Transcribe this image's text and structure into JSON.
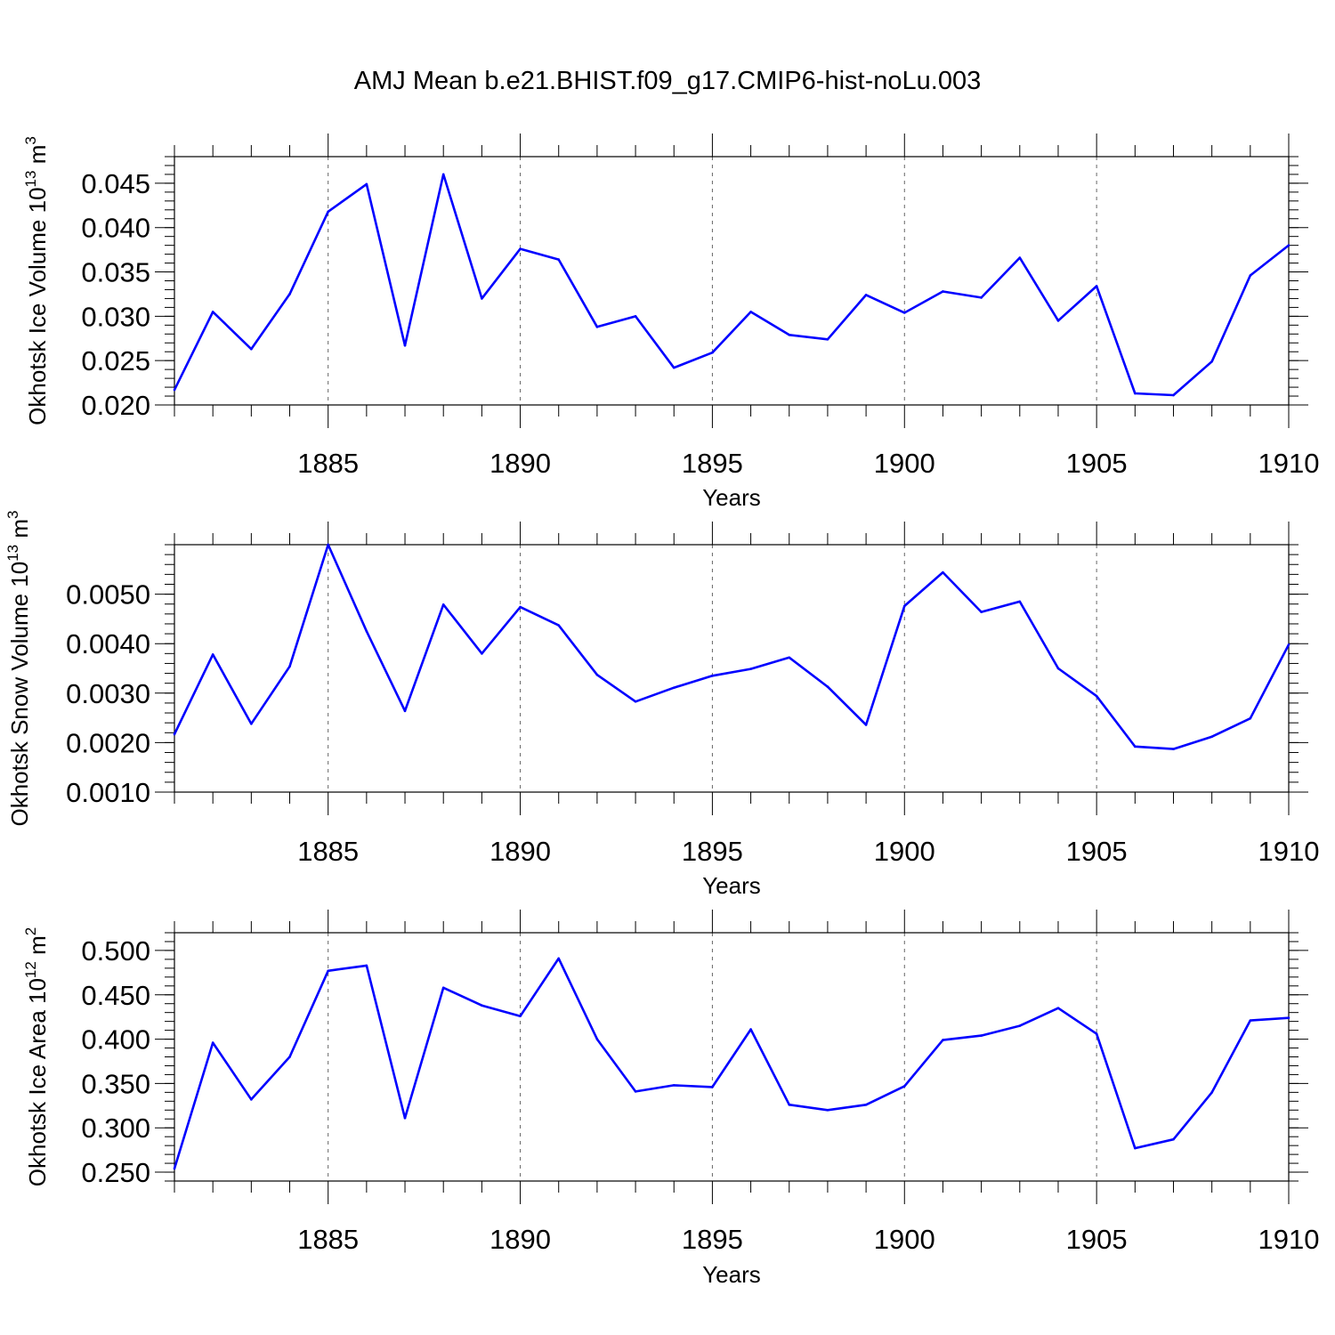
{
  "title": "AMJ Mean b.e21.BHIST.f09_g17.CMIP6-hist-noLu.003",
  "chart_data": [
    {
      "type": "line",
      "name": "ice-volume",
      "ylabel": "Okhotsk Ice Volume",
      "ylabel_power": "10",
      "ylabel_exp": "13",
      "ylabel_unit": "m",
      "ylabel_unit_exp": "3",
      "xlabel": "Years",
      "xlim": [
        1881,
        1910
      ],
      "ylim": [
        0.02,
        0.048
      ],
      "xticks": [
        "1885",
        "1890",
        "1895",
        "1900",
        "1905",
        "1910"
      ],
      "yticks": [
        "0.020",
        "0.025",
        "0.030",
        "0.035",
        "0.040",
        "0.045"
      ],
      "x": [
        1881,
        1882,
        1883,
        1884,
        1885,
        1886,
        1887,
        1888,
        1889,
        1890,
        1891,
        1892,
        1893,
        1894,
        1895,
        1896,
        1897,
        1898,
        1899,
        1900,
        1901,
        1902,
        1903,
        1904,
        1905,
        1906,
        1907,
        1908,
        1909,
        1910
      ],
      "values": [
        0.0217,
        0.0305,
        0.0263,
        0.0325,
        0.0418,
        0.0449,
        0.0267,
        0.046,
        0.032,
        0.0376,
        0.0364,
        0.0288,
        0.03,
        0.0242,
        0.0259,
        0.0305,
        0.0279,
        0.0274,
        0.0324,
        0.0304,
        0.0328,
        0.0321,
        0.0366,
        0.0295,
        0.0334,
        0.0213,
        0.0211,
        0.0249,
        0.0346,
        0.038
      ],
      "color": "#0000ff"
    },
    {
      "type": "line",
      "name": "snow-volume",
      "ylabel": "Okhotsk Snow Volume",
      "ylabel_power": "10",
      "ylabel_exp": "13",
      "ylabel_unit": "m",
      "ylabel_unit_exp": "3",
      "xlabel": "Years",
      "xlim": [
        1881,
        1910
      ],
      "ylim": [
        0.001,
        0.006
      ],
      "xticks": [
        "1885",
        "1890",
        "1895",
        "1900",
        "1905",
        "1910"
      ],
      "yticks": [
        "0.0010",
        "0.0020",
        "0.0030",
        "0.0040",
        "0.0050"
      ],
      "x": [
        1881,
        1882,
        1883,
        1884,
        1885,
        1886,
        1887,
        1888,
        1889,
        1890,
        1891,
        1892,
        1893,
        1894,
        1895,
        1896,
        1897,
        1898,
        1899,
        1900,
        1901,
        1902,
        1903,
        1904,
        1905,
        1906,
        1907,
        1908,
        1909,
        1910
      ],
      "values": [
        0.00217,
        0.00378,
        0.00238,
        0.00354,
        0.006,
        0.00425,
        0.00264,
        0.00479,
        0.0038,
        0.00474,
        0.00437,
        0.00337,
        0.00283,
        0.00311,
        0.00335,
        0.00349,
        0.00372,
        0.00313,
        0.00236,
        0.00476,
        0.00544,
        0.00464,
        0.00485,
        0.0035,
        0.00294,
        0.00192,
        0.00187,
        0.00212,
        0.00249,
        0.00398
      ],
      "color": "#0000ff"
    },
    {
      "type": "line",
      "name": "ice-area",
      "ylabel": "Okhotsk Ice Area",
      "ylabel_power": "10",
      "ylabel_exp": "12",
      "ylabel_unit": "m",
      "ylabel_unit_exp": "2",
      "xlabel": "Years",
      "xlim": [
        1881,
        1910
      ],
      "ylim": [
        0.24,
        0.52
      ],
      "xticks": [
        "1885",
        "1890",
        "1895",
        "1900",
        "1905",
        "1910"
      ],
      "yticks": [
        "0.250",
        "0.300",
        "0.350",
        "0.400",
        "0.450",
        "0.500"
      ],
      "x": [
        1881,
        1882,
        1883,
        1884,
        1885,
        1886,
        1887,
        1888,
        1889,
        1890,
        1891,
        1892,
        1893,
        1894,
        1895,
        1896,
        1897,
        1898,
        1899,
        1900,
        1901,
        1902,
        1903,
        1904,
        1905,
        1906,
        1907,
        1908,
        1909,
        1910
      ],
      "values": [
        0.254,
        0.396,
        0.332,
        0.38,
        0.477,
        0.483,
        0.311,
        0.458,
        0.438,
        0.426,
        0.491,
        0.4,
        0.341,
        0.348,
        0.346,
        0.411,
        0.326,
        0.32,
        0.326,
        0.347,
        0.399,
        0.404,
        0.415,
        0.435,
        0.406,
        0.277,
        0.287,
        0.34,
        0.421,
        0.424
      ],
      "color": "#0000ff"
    }
  ]
}
